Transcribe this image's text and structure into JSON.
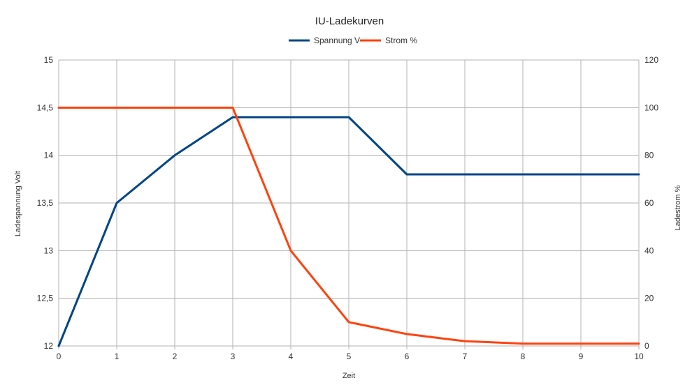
{
  "chart_data": {
    "type": "line",
    "title": "IU-Ladekurven",
    "xlabel": "Zeit",
    "ylabel_left": "Ladespannung Volt",
    "ylabel_right": "Ladestrom %",
    "x": [
      0,
      1,
      2,
      3,
      4,
      5,
      6,
      7,
      8,
      9,
      10
    ],
    "x_ticks": [
      "0",
      "1",
      "2",
      "3",
      "4",
      "5",
      "6",
      "7",
      "8",
      "9",
      "10"
    ],
    "xlim": [
      0,
      10
    ],
    "ylim_left": [
      12,
      15
    ],
    "y_ticks_left": [
      "12",
      "12,5",
      "13",
      "13,5",
      "14",
      "14,5",
      "15"
    ],
    "ylim_right": [
      0,
      120
    ],
    "y_ticks_right": [
      "0",
      "20",
      "40",
      "60",
      "80",
      "100",
      "120"
    ],
    "grid": true,
    "legend_position": "top",
    "series": [
      {
        "name": "Spannung V",
        "axis": "left",
        "color": "#004586",
        "values": [
          12,
          13.5,
          14,
          14.4,
          14.4,
          14.4,
          13.8,
          13.8,
          13.8,
          13.8,
          13.8
        ]
      },
      {
        "name": "Strom %",
        "axis": "right",
        "color": "#ff420e",
        "values": [
          100,
          100,
          100,
          100,
          40,
          10,
          5,
          2,
          1,
          1,
          1
        ]
      }
    ]
  }
}
